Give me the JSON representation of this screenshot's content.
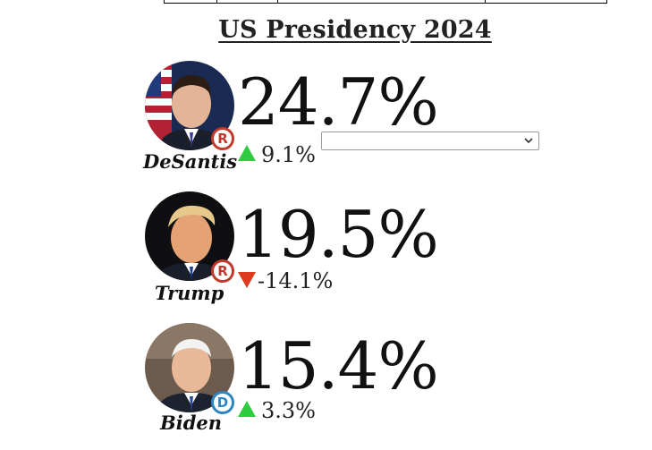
{
  "page": {
    "title": "US Presidency 2024"
  },
  "candidates": [
    {
      "name": "DeSantis",
      "percent": "24.7%",
      "change": "9.1%",
      "direction": "up",
      "party": "R",
      "party_color": "#c0392b",
      "avatar_icon": "desantis-portrait"
    },
    {
      "name": "Trump",
      "percent": "19.5%",
      "change": "-14.1%",
      "direction": "down",
      "party": "R",
      "party_color": "#c0392b",
      "avatar_icon": "trump-portrait"
    },
    {
      "name": "Biden",
      "percent": "15.4%",
      "change": "3.3%",
      "direction": "up",
      "party": "D",
      "party_color": "#2e86c1",
      "avatar_icon": "biden-portrait"
    }
  ],
  "colors": {
    "up_arrow": "#2ecc40",
    "down_arrow": "#e03a1e"
  },
  "dropdown": {
    "selected": ""
  }
}
